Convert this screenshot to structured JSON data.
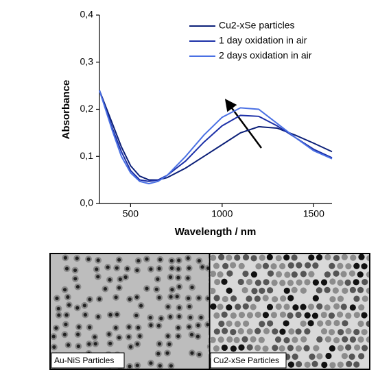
{
  "chart_data": {
    "type": "line",
    "x": [
      330,
      400,
      450,
      500,
      550,
      600,
      650,
      700,
      800,
      900,
      1000,
      1100,
      1200,
      1300,
      1400,
      1500,
      1600
    ],
    "series": [
      {
        "name": "Cu2-xSe particles",
        "color": "#0b1f78",
        "values": [
          0.24,
          0.17,
          0.12,
          0.08,
          0.058,
          0.05,
          0.05,
          0.055,
          0.075,
          0.1,
          0.125,
          0.15,
          0.163,
          0.16,
          0.145,
          0.128,
          0.11
        ]
      },
      {
        "name": "1 day oxidation in air",
        "color": "#1c30a8",
        "values": [
          0.24,
          0.16,
          0.11,
          0.07,
          0.05,
          0.047,
          0.05,
          0.06,
          0.09,
          0.13,
          0.165,
          0.187,
          0.185,
          0.165,
          0.14,
          0.115,
          0.097
        ]
      },
      {
        "name": "2 days oxidation in air",
        "color": "#4a70e4",
        "values": [
          0.24,
          0.155,
          0.1,
          0.065,
          0.047,
          0.042,
          0.047,
          0.06,
          0.1,
          0.145,
          0.183,
          0.203,
          0.2,
          0.17,
          0.14,
          0.112,
          0.095
        ]
      }
    ],
    "xlabel": "Wavelength / nm",
    "ylabel": "Absorbance",
    "xlim": [
      330,
      1600
    ],
    "xticks": [
      500,
      1000,
      1500
    ],
    "ylim": [
      0,
      0.4
    ],
    "yticks": [
      {
        "value": 0,
        "label": "0,0"
      },
      {
        "value": 0.1,
        "label": "0,1"
      },
      {
        "value": 0.2,
        "label": "0,2"
      },
      {
        "value": 0.3,
        "label": "0,3"
      },
      {
        "value": 0.4,
        "label": "0,4"
      }
    ],
    "grid": false,
    "legend": "upper right"
  },
  "panels": [
    {
      "label": "Au-NiS Particles"
    },
    {
      "label": "Cu2-xSe Particles"
    }
  ]
}
